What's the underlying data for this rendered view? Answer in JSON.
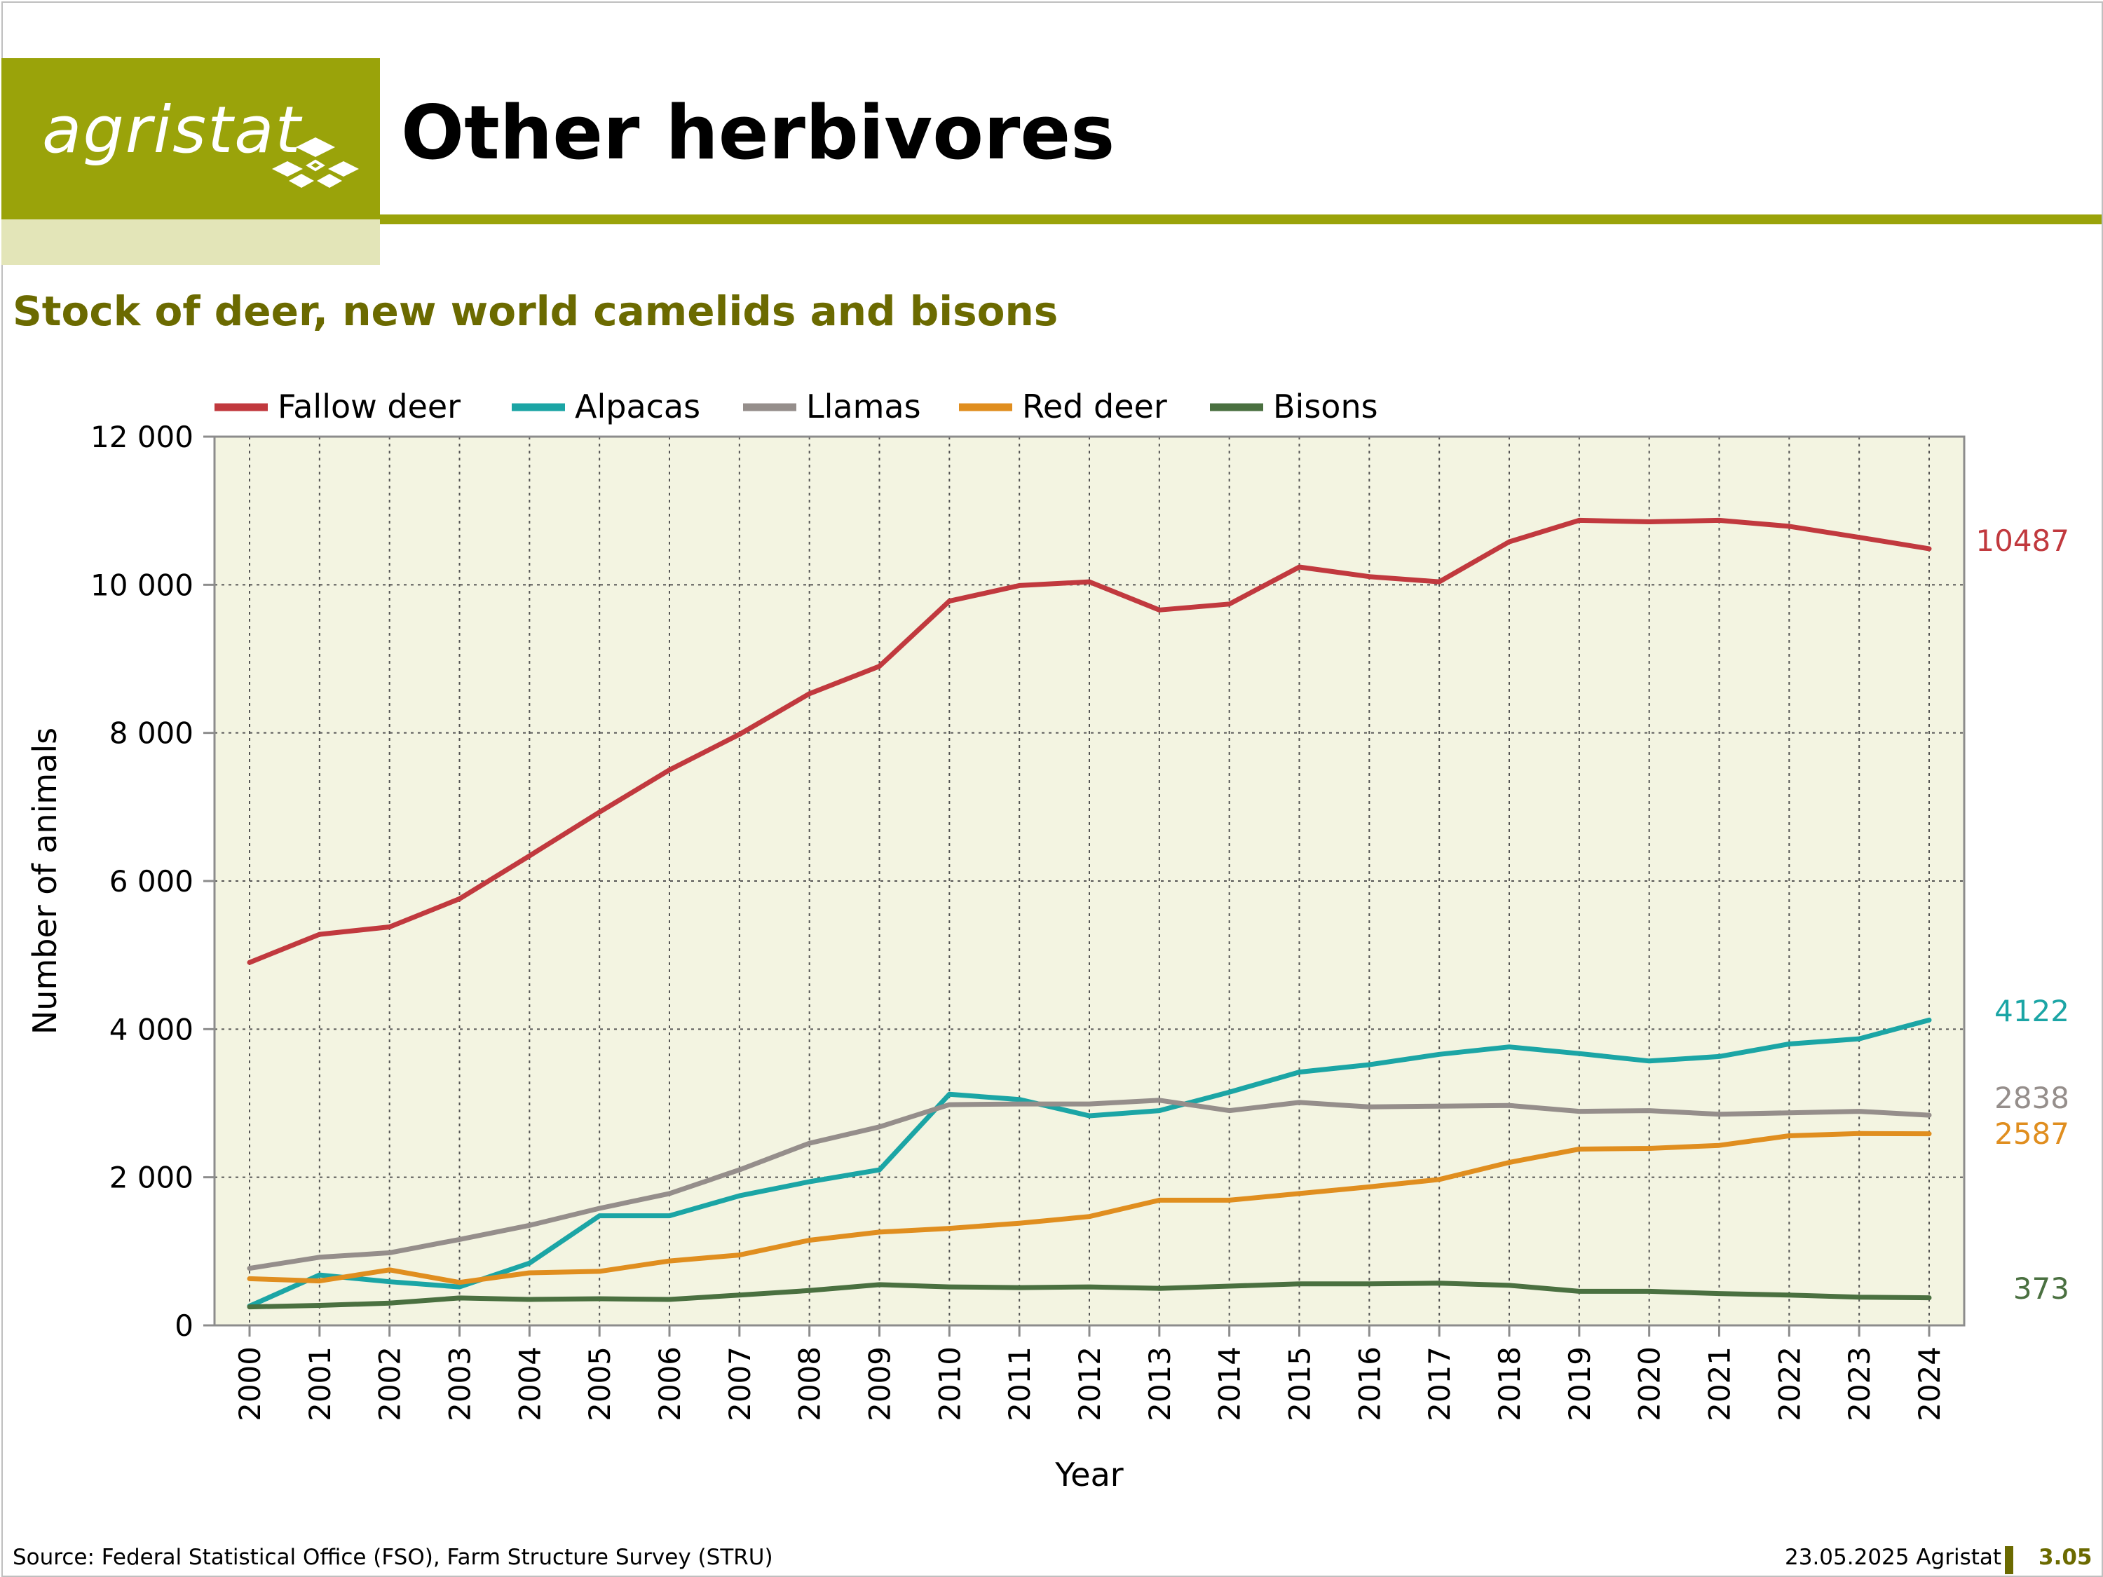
{
  "header": {
    "logo_text": "agristat",
    "title": "Other herbivores",
    "subtitle": "Stock of deer, new world camelids and bisons"
  },
  "footer": {
    "source": "Source: Federal Statistical Office (FSO), Farm Structure Survey (STRU)",
    "date": "23.05.2025 Agristat",
    "page_number": "3.05"
  },
  "chart_data": {
    "type": "line",
    "xlabel": "Year",
    "ylabel": "Number of animals",
    "ylim": [
      0,
      12000
    ],
    "yticks": [
      0,
      2000,
      4000,
      6000,
      8000,
      10000,
      12000
    ],
    "ytick_labels": [
      "0",
      "2 000",
      "4 000",
      "6 000",
      "8 000",
      "10 000",
      "12 000"
    ],
    "grid": true,
    "legend_position": "top",
    "plot_background": "#f3f4e1",
    "categories": [
      "2000",
      "2001",
      "2002",
      "2003",
      "2004",
      "2005",
      "2006",
      "2007",
      "2008",
      "2009",
      "2010",
      "2011",
      "2012",
      "2013",
      "2014",
      "2015",
      "2016",
      "2017",
      "2018",
      "2019",
      "2020",
      "2021",
      "2022",
      "2023",
      "2024"
    ],
    "series": [
      {
        "name": "Fallow deer",
        "color": "#c1393e",
        "end_label": "10487",
        "values": [
          4900,
          5280,
          5380,
          5760,
          6340,
          6930,
          7500,
          7980,
          8530,
          8900,
          9780,
          9990,
          10040,
          9660,
          9740,
          10240,
          10110,
          10040,
          10580,
          10870,
          10850,
          10870,
          10790,
          10640,
          10487
        ]
      },
      {
        "name": "Alpacas",
        "color": "#1ba5a5",
        "end_label": "4122",
        "values": [
          260,
          680,
          590,
          520,
          840,
          1480,
          1480,
          1750,
          1940,
          2100,
          3120,
          3050,
          2830,
          2900,
          3150,
          3420,
          3520,
          3660,
          3760,
          3670,
          3570,
          3630,
          3800,
          3870,
          4122
        ]
      },
      {
        "name": "Llamas",
        "color": "#958e8b",
        "end_label": "2838",
        "values": [
          770,
          920,
          980,
          1160,
          1350,
          1580,
          1780,
          2100,
          2460,
          2680,
          2980,
          2990,
          2990,
          3040,
          2900,
          3010,
          2950,
          2960,
          2970,
          2890,
          2900,
          2850,
          2870,
          2890,
          2838
        ]
      },
      {
        "name": "Red deer",
        "color": "#e08e1f",
        "end_label": "2587",
        "values": [
          630,
          600,
          750,
          580,
          710,
          730,
          870,
          950,
          1150,
          1260,
          1310,
          1380,
          1470,
          1690,
          1690,
          1780,
          1870,
          1970,
          2200,
          2380,
          2390,
          2430,
          2560,
          2590,
          2587
        ]
      },
      {
        "name": "Bisons",
        "color": "#4a7040",
        "end_label": "373",
        "values": [
          250,
          270,
          300,
          370,
          350,
          360,
          350,
          410,
          470,
          550,
          520,
          510,
          520,
          500,
          530,
          560,
          560,
          570,
          540,
          460,
          460,
          430,
          410,
          380,
          373
        ]
      }
    ]
  }
}
